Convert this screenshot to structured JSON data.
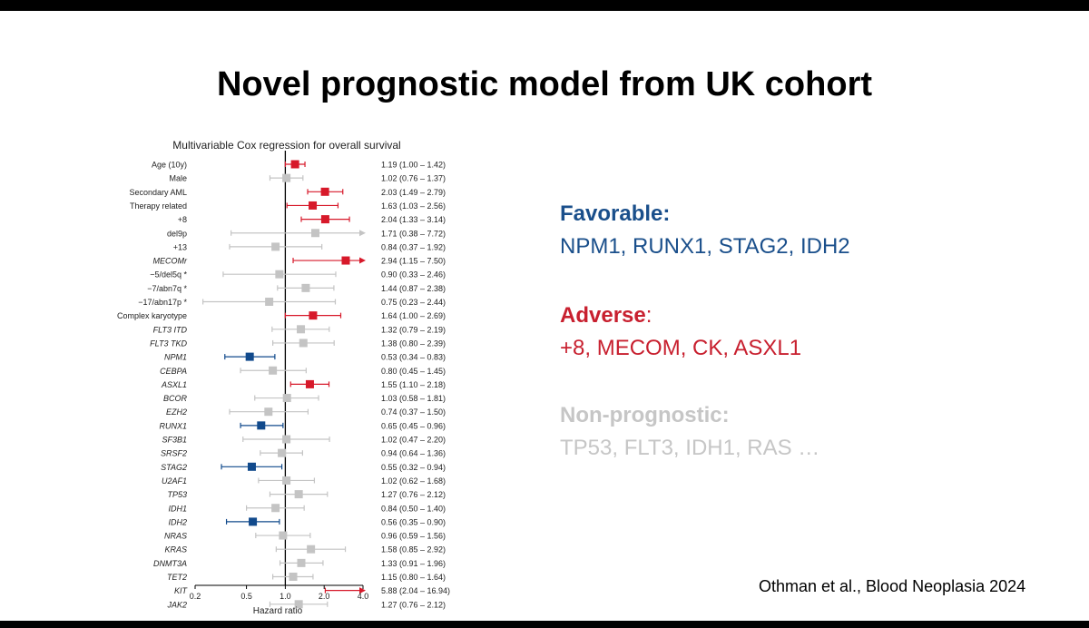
{
  "slide": {
    "title": "Novel prognostic model from UK cohort",
    "citation": "Othman et al., Blood Neoplasia  2024"
  },
  "legend": {
    "favorable": {
      "heading": "Favorable:",
      "genes": "NPM1, RUNX1, STAG2, IDH2",
      "color": "#1a4f8b"
    },
    "adverse": {
      "heading": "Adverse",
      "colon": ":",
      "genes": "+8, MECOM, CK, ASXL1",
      "color": "#c8202f"
    },
    "non_prognostic": {
      "heading": "Non-prognostic:",
      "genes": "TP53, FLT3, IDH1, RAS …",
      "color": "#c6c6c6"
    }
  },
  "chart_data": {
    "type": "forest",
    "title": "Multivariable Cox regression for overall survival",
    "xlabel": "Hazard ratio",
    "x_scale": "log",
    "xlim": [
      0.2,
      4.0
    ],
    "x_ticks": [
      0.2,
      0.5,
      1.0,
      2.0,
      4.0
    ],
    "x_tick_labels": [
      "0.2",
      "0.5",
      "1.0",
      "2.0",
      "4.0"
    ],
    "reference_line": 1.0,
    "colors": {
      "adverse": "#d7192a",
      "favorable": "#114a8c",
      "neutral": "#c4c4c4"
    },
    "rows": [
      {
        "label": "Age (10y)",
        "italic": false,
        "hr": 1.19,
        "lo": 1.0,
        "hi": 1.42,
        "ci_text": "1.19 (1.00 – 1.42)",
        "group": "adverse"
      },
      {
        "label": "Male",
        "italic": false,
        "hr": 1.02,
        "lo": 0.76,
        "hi": 1.37,
        "ci_text": "1.02 (0.76 – 1.37)",
        "group": "neutral"
      },
      {
        "label": "Secondary AML",
        "italic": false,
        "hr": 2.03,
        "lo": 1.49,
        "hi": 2.79,
        "ci_text": "2.03 (1.49 – 2.79)",
        "group": "adverse"
      },
      {
        "label": "Therapy related",
        "italic": false,
        "hr": 1.63,
        "lo": 1.03,
        "hi": 2.56,
        "ci_text": "1.63 (1.03 – 2.56)",
        "group": "adverse"
      },
      {
        "label": "+8",
        "italic": false,
        "hr": 2.04,
        "lo": 1.33,
        "hi": 3.14,
        "ci_text": "2.04 (1.33 – 3.14)",
        "group": "adverse"
      },
      {
        "label": "del9p",
        "italic": false,
        "hr": 1.71,
        "lo": 0.38,
        "hi": 7.72,
        "ci_text": "1.71 (0.38 – 7.72)",
        "group": "neutral"
      },
      {
        "label": "+13",
        "italic": false,
        "hr": 0.84,
        "lo": 0.37,
        "hi": 1.92,
        "ci_text": "0.84 (0.37 – 1.92)",
        "group": "neutral"
      },
      {
        "label": "MECOMr",
        "italic": true,
        "hr": 2.94,
        "lo": 1.15,
        "hi": 7.5,
        "ci_text": "2.94 (1.15 – 7.50)",
        "group": "adverse"
      },
      {
        "label": "−5/del5q *",
        "italic": false,
        "hr": 0.9,
        "lo": 0.33,
        "hi": 2.46,
        "ci_text": "0.90 (0.33 – 2.46)",
        "group": "neutral"
      },
      {
        "label": "−7/abn7q *",
        "italic": false,
        "hr": 1.44,
        "lo": 0.87,
        "hi": 2.38,
        "ci_text": "1.44 (0.87 – 2.38)",
        "group": "neutral"
      },
      {
        "label": "−17/abn17p *",
        "italic": false,
        "hr": 0.75,
        "lo": 0.23,
        "hi": 2.44,
        "ci_text": "0.75 (0.23 – 2.44)",
        "group": "neutral"
      },
      {
        "label": "Complex karyotype",
        "italic": false,
        "hr": 1.64,
        "lo": 1.0,
        "hi": 2.69,
        "ci_text": "1.64 (1.00 – 2.69)",
        "group": "adverse"
      },
      {
        "label": "FLT3 ITD",
        "italic": true,
        "hr": 1.32,
        "lo": 0.79,
        "hi": 2.19,
        "ci_text": "1.32 (0.79 – 2.19)",
        "group": "neutral"
      },
      {
        "label": "FLT3 TKD",
        "italic": true,
        "hr": 1.38,
        "lo": 0.8,
        "hi": 2.39,
        "ci_text": "1.38 (0.80 – 2.39)",
        "group": "neutral"
      },
      {
        "label": "NPM1",
        "italic": true,
        "hr": 0.53,
        "lo": 0.34,
        "hi": 0.83,
        "ci_text": "0.53 (0.34 – 0.83)",
        "group": "favorable"
      },
      {
        "label": "CEBPA",
        "italic": true,
        "hr": 0.8,
        "lo": 0.45,
        "hi": 1.45,
        "ci_text": "0.80 (0.45 – 1.45)",
        "group": "neutral"
      },
      {
        "label": "ASXL1",
        "italic": true,
        "hr": 1.55,
        "lo": 1.1,
        "hi": 2.18,
        "ci_text": "1.55 (1.10 – 2.18)",
        "group": "adverse"
      },
      {
        "label": "BCOR",
        "italic": true,
        "hr": 1.03,
        "lo": 0.58,
        "hi": 1.81,
        "ci_text": "1.03 (0.58 – 1.81)",
        "group": "neutral"
      },
      {
        "label": "EZH2",
        "italic": true,
        "hr": 0.74,
        "lo": 0.37,
        "hi": 1.5,
        "ci_text": "0.74 (0.37 – 1.50)",
        "group": "neutral"
      },
      {
        "label": "RUNX1",
        "italic": true,
        "hr": 0.65,
        "lo": 0.45,
        "hi": 0.96,
        "ci_text": "0.65 (0.45 – 0.96)",
        "group": "favorable"
      },
      {
        "label": "SF3B1",
        "italic": true,
        "hr": 1.02,
        "lo": 0.47,
        "hi": 2.2,
        "ci_text": "1.02 (0.47 – 2.20)",
        "group": "neutral"
      },
      {
        "label": "SRSF2",
        "italic": true,
        "hr": 0.94,
        "lo": 0.64,
        "hi": 1.36,
        "ci_text": "0.94 (0.64 – 1.36)",
        "group": "neutral"
      },
      {
        "label": "STAG2",
        "italic": true,
        "hr": 0.55,
        "lo": 0.32,
        "hi": 0.94,
        "ci_text": "0.55 (0.32 – 0.94)",
        "group": "favorable"
      },
      {
        "label": "U2AF1",
        "italic": true,
        "hr": 1.02,
        "lo": 0.62,
        "hi": 1.68,
        "ci_text": "1.02 (0.62 – 1.68)",
        "group": "neutral"
      },
      {
        "label": "TP53",
        "italic": true,
        "hr": 1.27,
        "lo": 0.76,
        "hi": 2.12,
        "ci_text": "1.27 (0.76 – 2.12)",
        "group": "neutral"
      },
      {
        "label": "IDH1",
        "italic": true,
        "hr": 0.84,
        "lo": 0.5,
        "hi": 1.4,
        "ci_text": "0.84 (0.50 – 1.40)",
        "group": "neutral"
      },
      {
        "label": "IDH2",
        "italic": true,
        "hr": 0.56,
        "lo": 0.35,
        "hi": 0.9,
        "ci_text": "0.56 (0.35 – 0.90)",
        "group": "favorable"
      },
      {
        "label": "NRAS",
        "italic": true,
        "hr": 0.96,
        "lo": 0.59,
        "hi": 1.56,
        "ci_text": "0.96 (0.59 – 1.56)",
        "group": "neutral"
      },
      {
        "label": "KRAS",
        "italic": true,
        "hr": 1.58,
        "lo": 0.85,
        "hi": 2.92,
        "ci_text": "1.58 (0.85 – 2.92)",
        "group": "neutral"
      },
      {
        "label": "DNMT3A",
        "italic": true,
        "hr": 1.33,
        "lo": 0.91,
        "hi": 1.96,
        "ci_text": "1.33 (0.91 – 1.96)",
        "group": "neutral"
      },
      {
        "label": "TET2",
        "italic": true,
        "hr": 1.15,
        "lo": 0.8,
        "hi": 1.64,
        "ci_text": "1.15 (0.80 – 1.64)",
        "group": "neutral"
      },
      {
        "label": "KIT",
        "italic": true,
        "hr": 5.88,
        "lo": 2.04,
        "hi": 16.94,
        "ci_text": "5.88 (2.04 – 16.94)",
        "group": "adverse"
      },
      {
        "label": "JAK2",
        "italic": true,
        "hr": 1.27,
        "lo": 0.76,
        "hi": 2.12,
        "ci_text": "1.27 (0.76 – 2.12)",
        "group": "neutral"
      }
    ]
  }
}
